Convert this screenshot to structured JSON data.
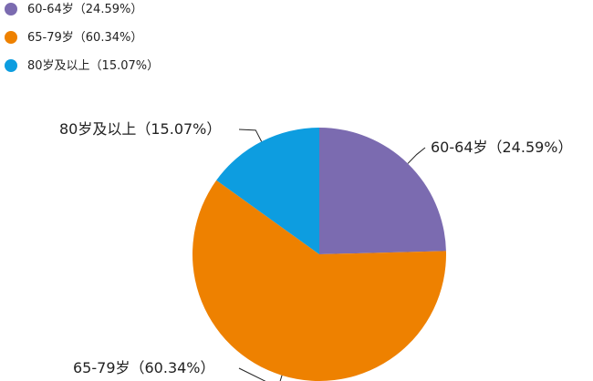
{
  "chart_data": {
    "type": "pie",
    "categories": [
      "60-64岁",
      "65-79岁",
      "80岁及以上"
    ],
    "values": [
      24.59,
      60.34,
      15.07
    ],
    "value_labels": [
      "（24.59%）",
      "（60.34%）",
      "（15.07%）"
    ],
    "colors": [
      "#7b6bb0",
      "#ee8100",
      "#0d9de0"
    ],
    "legend": "top-left"
  }
}
